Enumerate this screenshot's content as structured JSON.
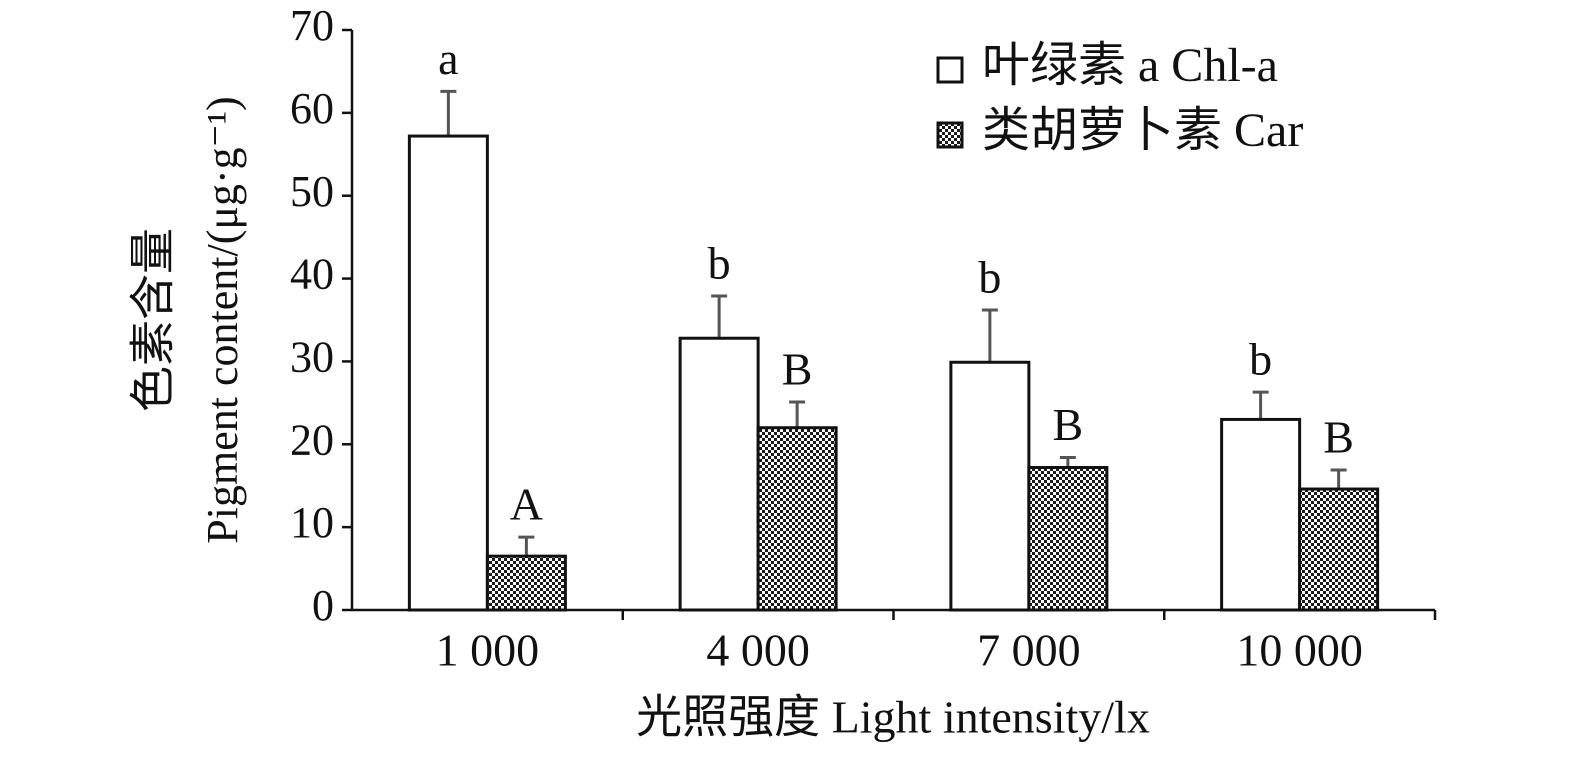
{
  "chart_data": {
    "type": "bar",
    "x_label": "光照强度 Light intensity/lx",
    "y_label_lines": [
      "色素含量",
      "Pigment content/(μg·g⁻¹)"
    ],
    "categories": [
      "1 000",
      "4 000",
      "7 000",
      "10 000"
    ],
    "series": [
      {
        "name": "叶绿素 a Chl-a",
        "color": "#ffffff",
        "pattern": false,
        "values": [
          57.2,
          32.8,
          29.9,
          23.0
        ],
        "errors": [
          5.4,
          5.1,
          6.3,
          3.3
        ],
        "letters": [
          "a",
          "b",
          "b",
          "b"
        ]
      },
      {
        "name": "类胡萝卜素 Car",
        "color": "#1a1a1a",
        "pattern": true,
        "values": [
          6.5,
          22.0,
          17.2,
          14.6
        ],
        "errors": [
          2.3,
          3.1,
          1.2,
          2.3
        ],
        "letters": [
          "A",
          "B",
          "B",
          "B"
        ]
      }
    ],
    "ylim": [
      0,
      70
    ],
    "yticks": [
      0,
      10,
      20,
      30,
      40,
      50,
      60,
      70
    ],
    "grid": false,
    "legend": "top-right"
  }
}
